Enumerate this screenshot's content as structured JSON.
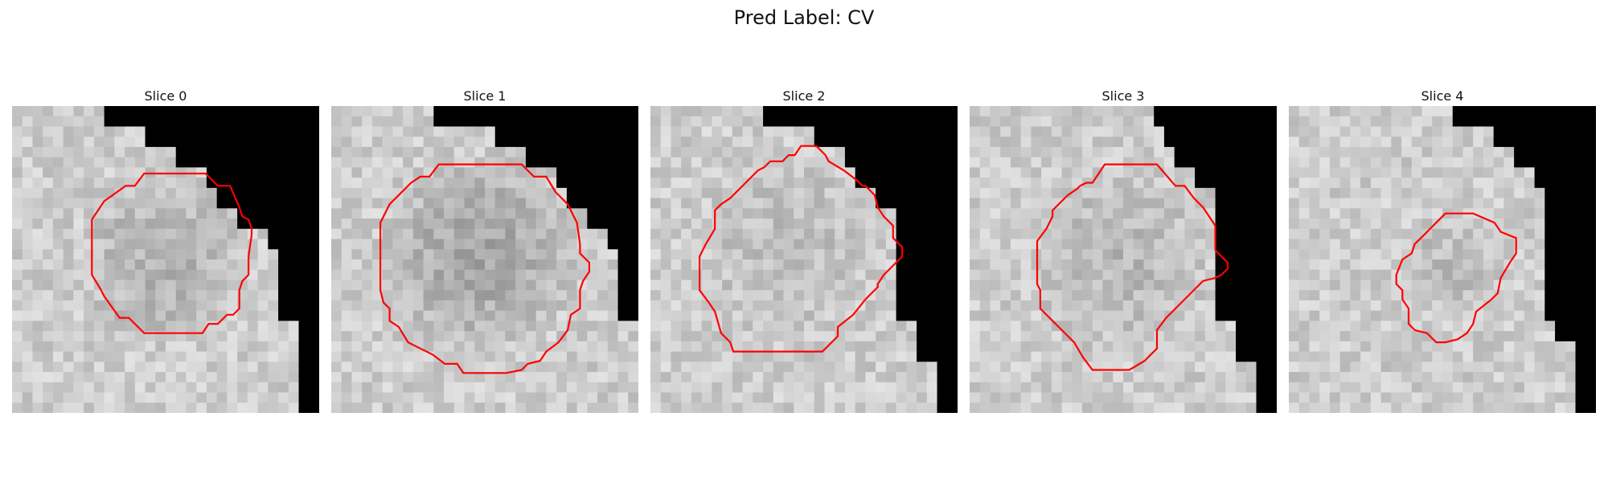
{
  "figure": {
    "suptitle": "Pred Label: CV"
  },
  "panels": [
    {
      "title": "Slice 0",
      "seed": 11,
      "center": [
        0.5,
        0.5
      ],
      "spread": 0.3,
      "darkness": 26,
      "black_steps": [
        [
          0.29,
          0
        ],
        [
          0.42,
          0.07
        ],
        [
          0.55,
          0.13
        ],
        [
          0.62,
          0.2
        ],
        [
          0.68,
          0.27
        ],
        [
          0.75,
          0.33
        ],
        [
          0.82,
          0.4
        ],
        [
          0.87,
          0.46
        ],
        [
          0.93,
          0.71
        ],
        [
          1.0,
          1.0
        ]
      ],
      "contour": [
        [
          0.43,
          0.22
        ],
        [
          0.63,
          0.22
        ],
        [
          0.67,
          0.26
        ],
        [
          0.71,
          0.26
        ],
        [
          0.74,
          0.33
        ],
        [
          0.75,
          0.36
        ],
        [
          0.77,
          0.37
        ],
        [
          0.78,
          0.4
        ],
        [
          0.78,
          0.42
        ],
        [
          0.77,
          0.49
        ],
        [
          0.77,
          0.55
        ],
        [
          0.75,
          0.57
        ],
        [
          0.74,
          0.6
        ],
        [
          0.74,
          0.66
        ],
        [
          0.72,
          0.68
        ],
        [
          0.7,
          0.68
        ],
        [
          0.67,
          0.71
        ],
        [
          0.64,
          0.71
        ],
        [
          0.62,
          0.74
        ],
        [
          0.43,
          0.74
        ],
        [
          0.38,
          0.69
        ],
        [
          0.35,
          0.69
        ],
        [
          0.3,
          0.62
        ],
        [
          0.29,
          0.6
        ],
        [
          0.26,
          0.55
        ],
        [
          0.26,
          0.37
        ],
        [
          0.3,
          0.31
        ],
        [
          0.37,
          0.26
        ],
        [
          0.4,
          0.26
        ]
      ]
    },
    {
      "title": "Slice 1",
      "seed": 23,
      "center": [
        0.48,
        0.48
      ],
      "spread": 0.34,
      "darkness": 38,
      "black_steps": [
        [
          0.35,
          0
        ],
        [
          0.55,
          0.07
        ],
        [
          0.65,
          0.13
        ],
        [
          0.72,
          0.2
        ],
        [
          0.78,
          0.27
        ],
        [
          0.84,
          0.33
        ],
        [
          0.9,
          0.4
        ],
        [
          0.94,
          0.46
        ],
        [
          1.0,
          0.71
        ],
        [
          1.0,
          1.0
        ]
      ],
      "contour": [
        [
          0.35,
          0.19
        ],
        [
          0.62,
          0.19
        ],
        [
          0.66,
          0.23
        ],
        [
          0.7,
          0.23
        ],
        [
          0.73,
          0.28
        ],
        [
          0.77,
          0.32
        ],
        [
          0.8,
          0.38
        ],
        [
          0.81,
          0.45
        ],
        [
          0.81,
          0.48
        ],
        [
          0.84,
          0.51
        ],
        [
          0.84,
          0.54
        ],
        [
          0.82,
          0.57
        ],
        [
          0.81,
          0.6
        ],
        [
          0.81,
          0.66
        ],
        [
          0.78,
          0.68
        ],
        [
          0.77,
          0.73
        ],
        [
          0.74,
          0.77
        ],
        [
          0.7,
          0.8
        ],
        [
          0.68,
          0.83
        ],
        [
          0.64,
          0.84
        ],
        [
          0.62,
          0.86
        ],
        [
          0.57,
          0.87
        ],
        [
          0.52,
          0.87
        ],
        [
          0.43,
          0.87
        ],
        [
          0.41,
          0.84
        ],
        [
          0.37,
          0.84
        ],
        [
          0.33,
          0.81
        ],
        [
          0.29,
          0.79
        ],
        [
          0.25,
          0.77
        ],
        [
          0.22,
          0.72
        ],
        [
          0.19,
          0.7
        ],
        [
          0.19,
          0.66
        ],
        [
          0.17,
          0.64
        ],
        [
          0.16,
          0.6
        ],
        [
          0.16,
          0.38
        ],
        [
          0.19,
          0.32
        ],
        [
          0.22,
          0.29
        ],
        [
          0.26,
          0.25
        ],
        [
          0.29,
          0.23
        ],
        [
          0.32,
          0.23
        ]
      ]
    },
    {
      "title": "Slice 2",
      "seed": 37,
      "center": [
        0.45,
        0.45
      ],
      "spread": 0.32,
      "darkness": 14,
      "black_steps": [
        [
          0.36,
          0
        ],
        [
          0.55,
          0.07
        ],
        [
          0.62,
          0.13
        ],
        [
          0.68,
          0.2
        ],
        [
          0.75,
          0.27
        ],
        [
          0.8,
          0.33
        ],
        [
          0.8,
          0.63
        ],
        [
          0.86,
          0.71
        ],
        [
          0.93,
          0.84
        ],
        [
          1.0,
          1.0
        ]
      ],
      "contour": [
        [
          0.39,
          0.18
        ],
        [
          0.43,
          0.18
        ],
        [
          0.45,
          0.16
        ],
        [
          0.47,
          0.16
        ],
        [
          0.49,
          0.13
        ],
        [
          0.54,
          0.13
        ],
        [
          0.57,
          0.16
        ],
        [
          0.58,
          0.18
        ],
        [
          0.63,
          0.21
        ],
        [
          0.67,
          0.24
        ],
        [
          0.69,
          0.26
        ],
        [
          0.7,
          0.26
        ],
        [
          0.73,
          0.29
        ],
        [
          0.74,
          0.33
        ],
        [
          0.76,
          0.36
        ],
        [
          0.79,
          0.39
        ],
        [
          0.79,
          0.43
        ],
        [
          0.82,
          0.46
        ],
        [
          0.82,
          0.49
        ],
        [
          0.79,
          0.52
        ],
        [
          0.76,
          0.55
        ],
        [
          0.74,
          0.58
        ],
        [
          0.74,
          0.59
        ],
        [
          0.72,
          0.61
        ],
        [
          0.7,
          0.63
        ],
        [
          0.66,
          0.68
        ],
        [
          0.61,
          0.72
        ],
        [
          0.61,
          0.75
        ],
        [
          0.56,
          0.8
        ],
        [
          0.52,
          0.8
        ],
        [
          0.27,
          0.8
        ],
        [
          0.26,
          0.77
        ],
        [
          0.23,
          0.74
        ],
        [
          0.21,
          0.67
        ],
        [
          0.19,
          0.64
        ],
        [
          0.16,
          0.6
        ],
        [
          0.16,
          0.49
        ],
        [
          0.18,
          0.45
        ],
        [
          0.21,
          0.4
        ],
        [
          0.21,
          0.34
        ],
        [
          0.23,
          0.32
        ],
        [
          0.26,
          0.3
        ],
        [
          0.29,
          0.27
        ],
        [
          0.33,
          0.23
        ],
        [
          0.35,
          0.21
        ],
        [
          0.37,
          0.2
        ]
      ]
    },
    {
      "title": "Slice 3",
      "seed": 49,
      "center": [
        0.48,
        0.5
      ],
      "spread": 0.32,
      "darkness": 20,
      "black_steps": [
        [
          0.61,
          0
        ],
        [
          0.65,
          0.07
        ],
        [
          0.68,
          0.13
        ],
        [
          0.72,
          0.2
        ],
        [
          0.8,
          0.27
        ],
        [
          0.8,
          0.63
        ],
        [
          0.87,
          0.71
        ],
        [
          0.93,
          0.84
        ],
        [
          1.0,
          1.0
        ],
        [
          1.0,
          1.0
        ]
      ],
      "contour": [
        [
          0.44,
          0.19
        ],
        [
          0.61,
          0.19
        ],
        [
          0.67,
          0.26
        ],
        [
          0.7,
          0.26
        ],
        [
          0.73,
          0.3
        ],
        [
          0.76,
          0.33
        ],
        [
          0.8,
          0.39
        ],
        [
          0.8,
          0.47
        ],
        [
          0.84,
          0.51
        ],
        [
          0.84,
          0.53
        ],
        [
          0.82,
          0.55
        ],
        [
          0.8,
          0.56
        ],
        [
          0.76,
          0.57
        ],
        [
          0.72,
          0.61
        ],
        [
          0.69,
          0.64
        ],
        [
          0.64,
          0.69
        ],
        [
          0.61,
          0.73
        ],
        [
          0.61,
          0.79
        ],
        [
          0.57,
          0.83
        ],
        [
          0.52,
          0.86
        ],
        [
          0.46,
          0.86
        ],
        [
          0.4,
          0.86
        ],
        [
          0.37,
          0.82
        ],
        [
          0.34,
          0.77
        ],
        [
          0.3,
          0.73
        ],
        [
          0.27,
          0.7
        ],
        [
          0.23,
          0.66
        ],
        [
          0.23,
          0.6
        ],
        [
          0.22,
          0.58
        ],
        [
          0.22,
          0.44
        ],
        [
          0.25,
          0.4
        ],
        [
          0.27,
          0.36
        ],
        [
          0.27,
          0.34
        ],
        [
          0.3,
          0.31
        ],
        [
          0.32,
          0.29
        ],
        [
          0.35,
          0.27
        ],
        [
          0.36,
          0.26
        ],
        [
          0.38,
          0.25
        ],
        [
          0.4,
          0.25
        ]
      ]
    },
    {
      "title": "Slice 4",
      "seed": 61,
      "center": [
        0.52,
        0.52
      ],
      "spread": 0.18,
      "darkness": 16,
      "black_steps": [
        [
          0.55,
          0
        ],
        [
          0.68,
          0.07
        ],
        [
          0.74,
          0.13
        ],
        [
          0.8,
          0.2
        ],
        [
          0.82,
          0.27
        ],
        [
          0.82,
          0.65
        ],
        [
          0.87,
          0.71
        ],
        [
          0.93,
          0.78
        ],
        [
          0.93,
          0.84
        ],
        [
          1.0,
          1.0
        ]
      ],
      "contour": [
        [
          0.55,
          0.35
        ],
        [
          0.6,
          0.35
        ],
        [
          0.67,
          0.38
        ],
        [
          0.69,
          0.41
        ],
        [
          0.74,
          0.43
        ],
        [
          0.74,
          0.48
        ],
        [
          0.72,
          0.51
        ],
        [
          0.69,
          0.56
        ],
        [
          0.68,
          0.61
        ],
        [
          0.66,
          0.63
        ],
        [
          0.61,
          0.67
        ],
        [
          0.6,
          0.71
        ],
        [
          0.58,
          0.74
        ],
        [
          0.55,
          0.76
        ],
        [
          0.51,
          0.77
        ],
        [
          0.48,
          0.77
        ],
        [
          0.45,
          0.74
        ],
        [
          0.41,
          0.73
        ],
        [
          0.39,
          0.71
        ],
        [
          0.39,
          0.66
        ],
        [
          0.37,
          0.63
        ],
        [
          0.37,
          0.6
        ],
        [
          0.35,
          0.58
        ],
        [
          0.35,
          0.55
        ],
        [
          0.37,
          0.5
        ],
        [
          0.4,
          0.48
        ],
        [
          0.41,
          0.45
        ],
        [
          0.43,
          0.43
        ],
        [
          0.47,
          0.39
        ],
        [
          0.49,
          0.37
        ],
        [
          0.51,
          0.35
        ]
      ]
    }
  ],
  "style": {
    "contour_color": "#ff0000",
    "background_color": "#000000"
  }
}
